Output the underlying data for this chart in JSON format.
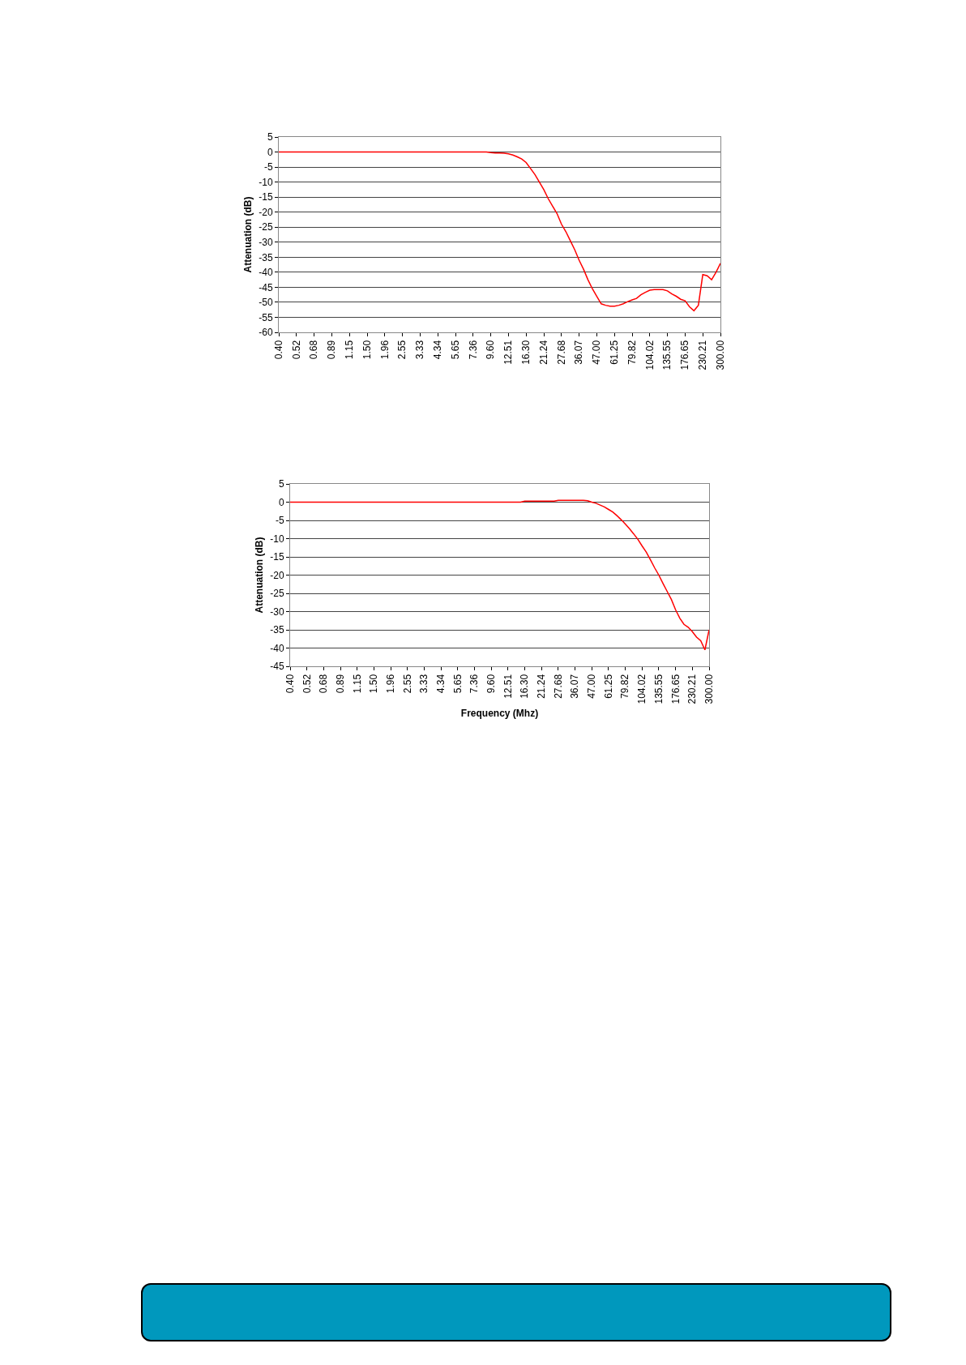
{
  "chart_data": [
    {
      "type": "line",
      "ylabel": "Attenuation (dB)",
      "color": "#ff0000",
      "grid": "y",
      "ylim": [
        -60,
        5
      ],
      "yticks": [
        5,
        0,
        -5,
        -10,
        -15,
        -20,
        -25,
        -30,
        -35,
        -40,
        -45,
        -50,
        -55,
        -60
      ],
      "categories": [
        "0.40",
        null,
        null,
        null,
        "0.52",
        null,
        null,
        null,
        "0.68",
        null,
        null,
        null,
        "0.89",
        null,
        null,
        null,
        "1.15",
        null,
        null,
        null,
        "1.50",
        null,
        null,
        null,
        "1.96",
        null,
        null,
        null,
        "2.55",
        null,
        null,
        null,
        "3.33",
        null,
        null,
        null,
        "4.34",
        null,
        null,
        null,
        "5.65",
        null,
        null,
        null,
        "7.36",
        null,
        null,
        null,
        "9.60",
        null,
        null,
        null,
        "12.51",
        null,
        null,
        null,
        "16.30",
        null,
        null,
        null,
        "21.24",
        null,
        null,
        null,
        "27.68",
        null,
        null,
        null,
        "36.07",
        null,
        null,
        null,
        "47.00",
        null,
        null,
        null,
        "61.25",
        null,
        null,
        null,
        "79.82",
        null,
        null,
        null,
        "104.02",
        null,
        null,
        null,
        "135.55",
        null,
        null,
        null,
        "176.65",
        null,
        null,
        null,
        "230.21",
        null,
        null,
        null,
        "300.00"
      ],
      "values": [
        0,
        0,
        0,
        0,
        0,
        0,
        0,
        0,
        0,
        0,
        0,
        0,
        0,
        0,
        0,
        0,
        0,
        0,
        0,
        0,
        0,
        0,
        0,
        0,
        0,
        0,
        0,
        0,
        0,
        0,
        0,
        0,
        0,
        0,
        0,
        0,
        0,
        0,
        0,
        0,
        0,
        0,
        0,
        0,
        0,
        0,
        0,
        0,
        -0.2,
        -0.3,
        -0.3,
        -0.4,
        -0.6,
        -1,
        -1.6,
        -2.3,
        -3.5,
        -5.5,
        -7.5,
        -10,
        -12.5,
        -15.5,
        -18,
        -20.5,
        -24,
        -26.5,
        -29.5,
        -32.5,
        -36,
        -39,
        -42.5,
        -45.5,
        -48,
        -50.5,
        -51,
        -51.3,
        -51.3,
        -51,
        -50.5,
        -49.8,
        -49.2,
        -48.7,
        -47.5,
        -46.7,
        -46,
        -45.8,
        -45.8,
        -45.8,
        -46.2,
        -47.2,
        -48,
        -49,
        -49.5,
        -51.5,
        -52.8,
        -51,
        -40.8,
        -41.2,
        -42.5,
        -40,
        -37
      ]
    },
    {
      "type": "line",
      "ylabel": "Attenuation (dB)",
      "xlabel": "Frequency (Mhz)",
      "color": "#ff0000",
      "grid": "y",
      "ylim": [
        -45,
        5
      ],
      "yticks": [
        5,
        0,
        -5,
        -10,
        -15,
        -20,
        -25,
        -30,
        -35,
        -40,
        -45
      ],
      "categories": [
        "0.40",
        null,
        null,
        null,
        "0.52",
        null,
        null,
        null,
        "0.68",
        null,
        null,
        null,
        "0.89",
        null,
        null,
        null,
        "1.15",
        null,
        null,
        null,
        "1.50",
        null,
        null,
        null,
        "1.96",
        null,
        null,
        null,
        "2.55",
        null,
        null,
        null,
        "3.33",
        null,
        null,
        null,
        "4.34",
        null,
        null,
        null,
        "5.65",
        null,
        null,
        null,
        "7.36",
        null,
        null,
        null,
        "9.60",
        null,
        null,
        null,
        "12.51",
        null,
        null,
        null,
        "16.30",
        null,
        null,
        null,
        "21.24",
        null,
        null,
        null,
        "27.68",
        null,
        null,
        null,
        "36.07",
        null,
        null,
        null,
        "47.00",
        null,
        null,
        null,
        "61.25",
        null,
        null,
        null,
        "79.82",
        null,
        null,
        null,
        "104.02",
        null,
        null,
        null,
        "135.55",
        null,
        null,
        null,
        "176.65",
        null,
        null,
        null,
        "230.21",
        null,
        null,
        null,
        "300.00"
      ],
      "values": [
        0,
        0,
        0,
        0,
        0,
        0,
        0,
        0,
        0,
        0,
        0,
        0,
        0,
        0,
        0,
        0,
        0,
        0,
        0,
        0,
        0,
        0,
        0,
        0,
        0,
        0,
        0,
        0,
        0,
        0,
        0,
        0,
        0,
        0,
        0,
        0,
        0,
        0,
        0,
        0,
        0,
        0,
        0,
        0,
        0,
        0,
        0,
        0,
        0,
        0,
        0,
        0,
        0,
        0,
        0,
        0,
        0.3,
        0.3,
        0.3,
        0.3,
        0.3,
        0.3,
        0.3,
        0.3,
        0.5,
        0.5,
        0.5,
        0.5,
        0.5,
        0.5,
        0.5,
        0.4,
        0,
        -0.3,
        -0.8,
        -1.3,
        -2,
        -2.7,
        -3.7,
        -4.8,
        -6,
        -7.3,
        -8.7,
        -10.2,
        -12,
        -13.7,
        -15.8,
        -18,
        -20,
        -22.3,
        -24.5,
        -26.7,
        -29.5,
        -31.8,
        -33.5,
        -34.3,
        -35.5,
        -37,
        -38,
        -40.5,
        -35
      ]
    }
  ]
}
